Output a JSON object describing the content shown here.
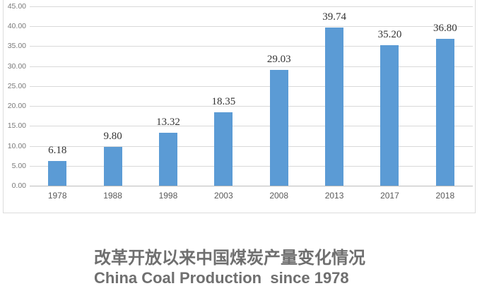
{
  "chart_data": {
    "type": "bar",
    "title": "改革开放以来中国煤炭产量变化情况",
    "subtitle": "China Coal Production  since 1978",
    "categories": [
      "1978",
      "1988",
      "1998",
      "2003",
      "2008",
      "2013",
      "2017",
      "2018"
    ],
    "values": [
      6.18,
      9.8,
      13.32,
      18.35,
      29.03,
      39.74,
      35.2,
      36.8
    ],
    "value_labels": [
      "6.18",
      "9.80",
      "13.32",
      "18.35",
      "29.03",
      "39.74",
      "35.20",
      "36.80"
    ],
    "y_ticks": [
      "45.00",
      "40.00",
      "35.00",
      "30.00",
      "25.00",
      "20.00",
      "15.00",
      "10.00",
      "5.00",
      "0.00"
    ],
    "ylim": [
      0,
      45
    ],
    "xlabel": "",
    "ylabel": "",
    "grid": true,
    "legend": "none",
    "bar_color": "#5B9BD5",
    "gridline_color": "#d9d9d9",
    "axis_line_color": "#bdbdbd",
    "y_tick_color": "#7a7a7a",
    "x_tick_color": "#595959",
    "value_label_color": "#333333",
    "title_color": "#6f6f6f"
  }
}
